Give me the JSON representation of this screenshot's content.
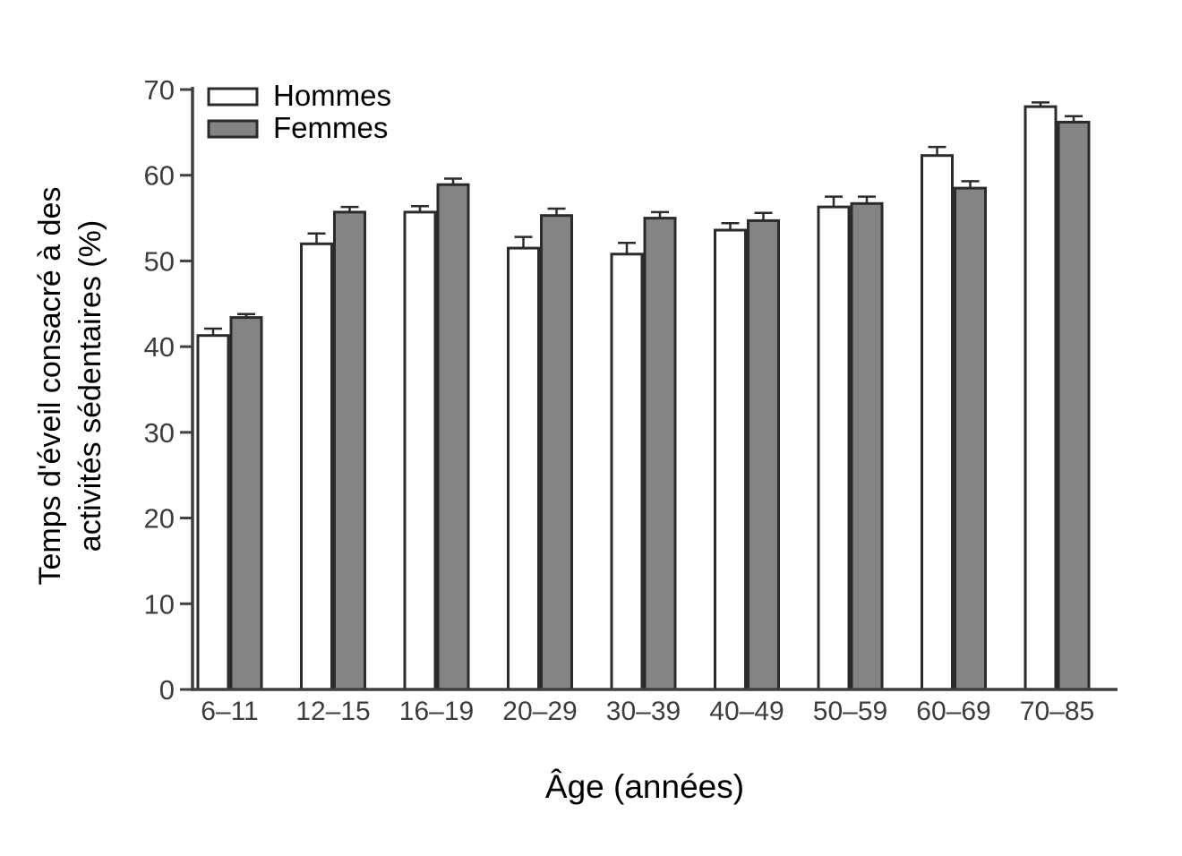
{
  "chart_data": {
    "type": "bar",
    "title": "",
    "xlabel": "Âge (années)",
    "ylabel": "Temps d'éveil consacré à des activités sédentaires (%)",
    "ylabel_lines": [
      "Temps d'éveil consacré à des",
      "activités sédentaires (%)"
    ],
    "ylim": [
      0,
      70
    ],
    "yticks": [
      0,
      10,
      20,
      30,
      40,
      50,
      60,
      70
    ],
    "categories": [
      "6–11",
      "12–15",
      "16–19",
      "20–29",
      "30–39",
      "40–49",
      "50–59",
      "60–69",
      "70–85"
    ],
    "series": [
      {
        "name": "Hommes",
        "fill": "#ffffff",
        "values": [
          41.3,
          52.0,
          55.7,
          51.5,
          50.8,
          53.6,
          56.3,
          62.3,
          68.0
        ],
        "errors": [
          0.8,
          1.2,
          0.7,
          1.3,
          1.3,
          0.8,
          1.2,
          1.0,
          0.5
        ]
      },
      {
        "name": "Femmes",
        "fill": "#848484",
        "values": [
          43.4,
          55.7,
          58.9,
          55.3,
          55.0,
          54.7,
          56.7,
          58.5,
          66.2
        ],
        "errors": [
          0.4,
          0.6,
          0.7,
          0.8,
          0.7,
          0.9,
          0.8,
          0.8,
          0.7
        ]
      }
    ],
    "legend_position": "top-left",
    "grid": false,
    "colors": {
      "outline": "#2b2b2b",
      "axis": "#3f3f3f",
      "tick_text": "#3d3d3d",
      "title_text": "#000000",
      "background": "#ffffff"
    }
  }
}
